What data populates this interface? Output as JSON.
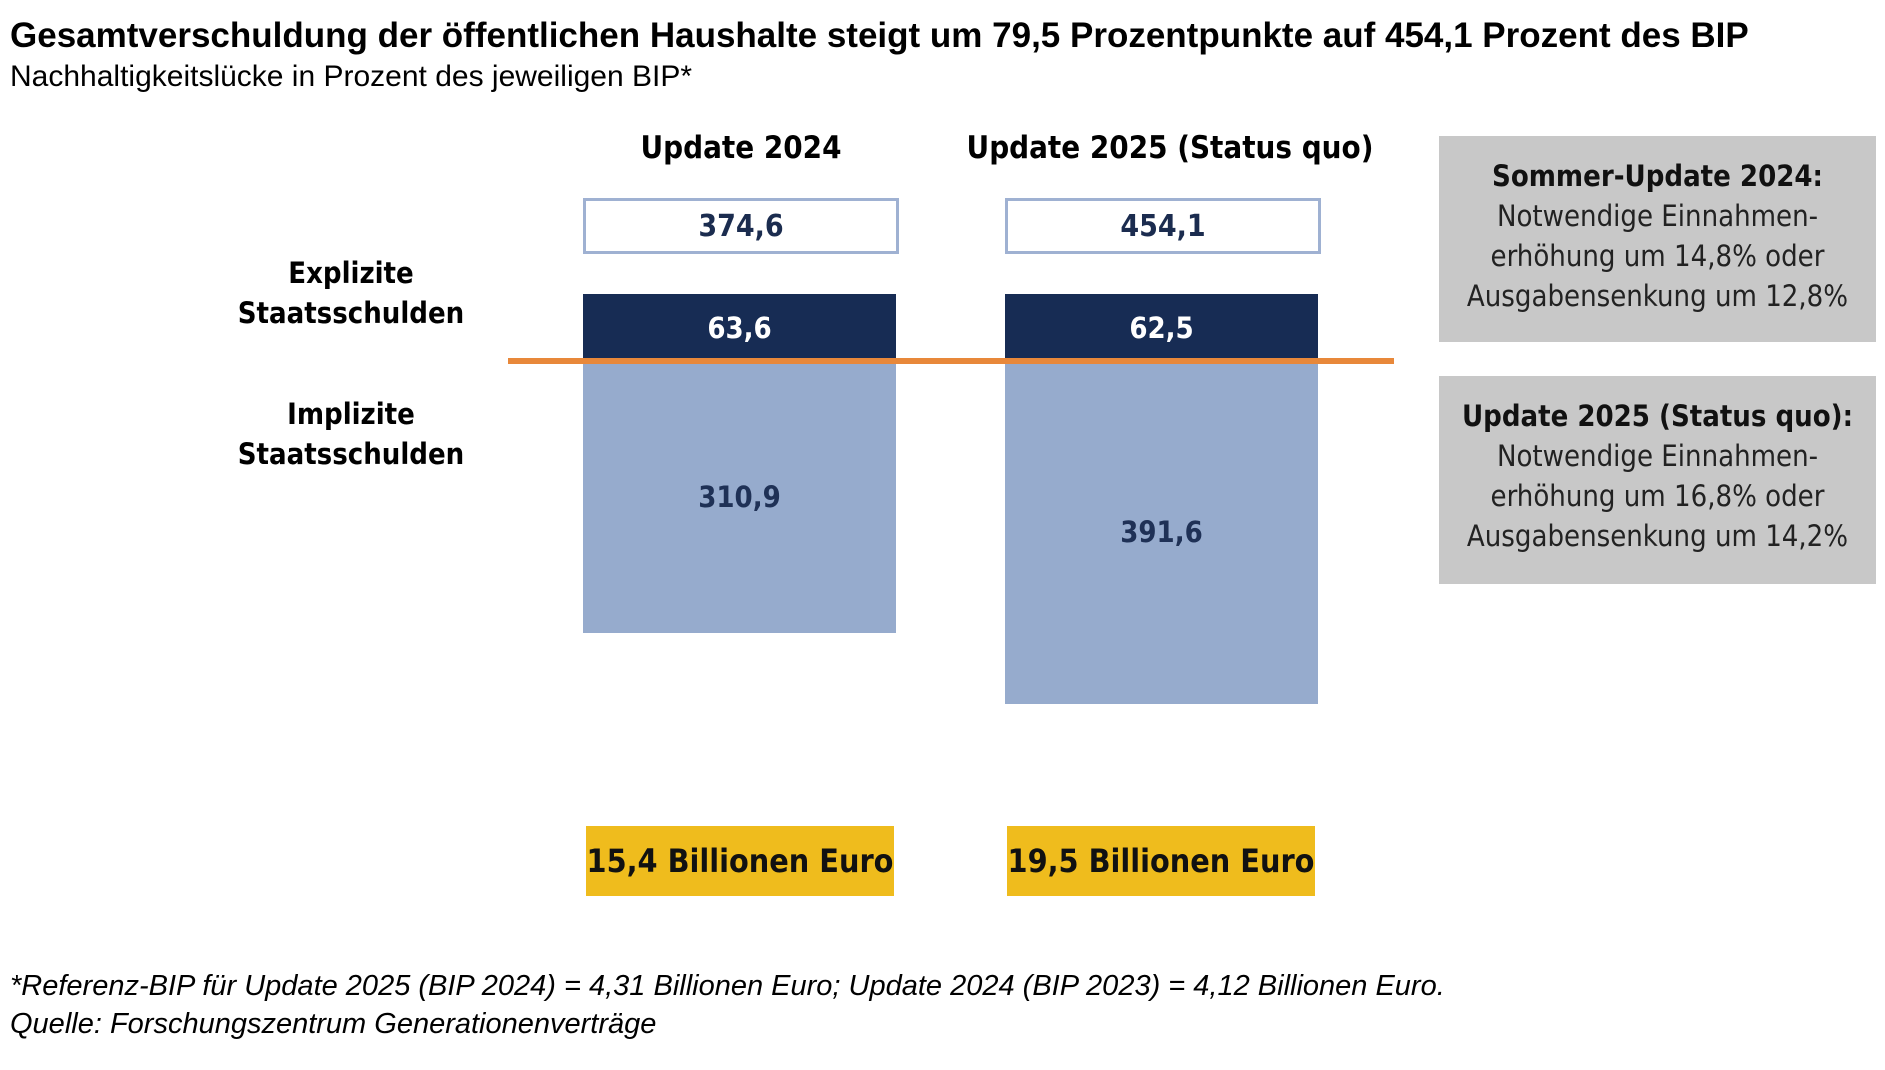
{
  "title": "Gesamtverschuldung der öffentlichen Haushalte steigt um 79,5 Prozentpunkte auf 454,1 Prozent des BIP",
  "subtitle": "Nachhaltigkeitslücke in Prozent des jeweiligen BIP*",
  "row_labels": {
    "explicit_line1": "Explizite",
    "explicit_line2": "Staatsschulden",
    "implicit_line1": "Implizite",
    "implicit_line2": "Staatsschulden"
  },
  "chart_data": {
    "type": "bar",
    "stacked": true,
    "categories": [
      "Update 2024",
      "Update 2025 (Status quo)"
    ],
    "totals_display": [
      "374,6",
      "454,1"
    ],
    "totals": [
      374.6,
      454.1
    ],
    "series": [
      {
        "name": "Explizite Staatsschulden",
        "values": [
          63.6,
          62.5
        ],
        "value_labels": [
          "63,6",
          "62,5"
        ],
        "color": "#172c54"
      },
      {
        "name": "Implizite Staatsschulden",
        "values": [
          310.9,
          391.6
        ],
        "value_labels": [
          "310,9",
          "391,6"
        ],
        "color": "#96abcd"
      }
    ],
    "baseline_color": "#e8883a",
    "billions_labels": [
      "15,4 Billionen Euro",
      "19,5 Billionen Euro"
    ],
    "billions_color": "#efbc1d"
  },
  "info_boxes": [
    {
      "head": "Sommer-Update 2024:",
      "lines": [
        "Notwendige Einnahmen-",
        "erhöhung um 14,8% oder",
        "Ausgabensenkung um 12,8%"
      ]
    },
    {
      "head": "Update 2025 (Status quo):",
      "lines": [
        "Notwendige Einnahmen-",
        "erhöhung um 16,8% oder",
        "Ausgabensenkung um 14,2%"
      ]
    }
  ],
  "footnote": "*Referenz-BIP für Update 2025 (BIP 2024) = 4,31 Billionen Euro; Update 2024 (BIP 2023) = 4,12 Billionen Euro.",
  "source": "Quelle: Forschungszentrum Generationenverträge"
}
